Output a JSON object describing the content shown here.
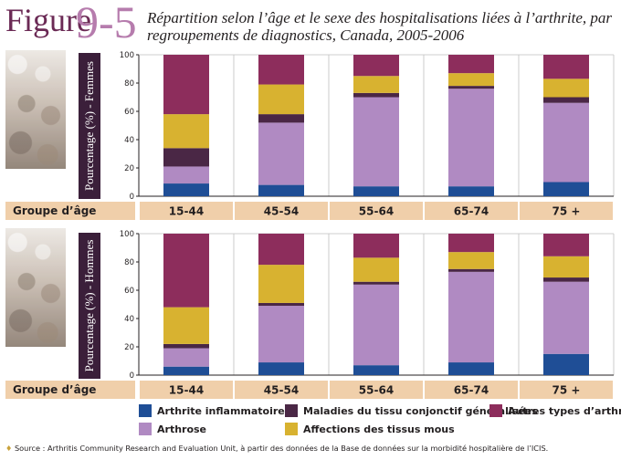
{
  "header": {
    "figure_word": "Figure",
    "figure_number": "9-5",
    "title": "Répartition selon l’âge et le sexe des hospitalisations liées à l’arthrite, par regroupements de diagnostics, Canada, 2005-2006"
  },
  "colors": {
    "arthrite_inflammatoire": "#1f4e96",
    "arthrose": "#b08ac2",
    "maladies_tissu_conjonctif": "#4a2745",
    "affections_tissus_mous": "#d8b230",
    "autres_types": "#8d2d5c",
    "age_bar": "#f0cfaa",
    "ylabel_box": "#3b1f3a"
  },
  "groupe_label": "Groupe d’âge",
  "legend": [
    {
      "key": "arthrite_inflammatoire",
      "label": "Arthrite inflammatoire"
    },
    {
      "key": "maladies_tissu_conjonctif",
      "label": "Maladies du tissu conjonctif généralisées"
    },
    {
      "key": "autres_types",
      "label": "Autres types d’arthrite"
    },
    {
      "key": "arthrose",
      "label": "Arthrose"
    },
    {
      "key": "affections_tissus_mous",
      "label": "Affections des tissus mous"
    }
  ],
  "source": "Source : Arthritis Community Research and Evaluation Unit, à partir des données de la Base de données sur la morbidité hospitalière de l’ICIS.",
  "chart_data": [
    {
      "type": "bar",
      "stacked": true,
      "ylabel": "Pourcentage (%) - Femmes",
      "ylim": [
        0,
        100
      ],
      "yticks": [
        0,
        20,
        40,
        60,
        80,
        100
      ],
      "categories": [
        "15-44",
        "45-54",
        "55-64",
        "65-74",
        "75 +"
      ],
      "series": [
        {
          "name": "Arthrite inflammatoire",
          "key": "arthrite_inflammatoire",
          "values": [
            9,
            8,
            7,
            7,
            10
          ]
        },
        {
          "name": "Arthrose",
          "key": "arthrose",
          "values": [
            12,
            44,
            63,
            69,
            56
          ]
        },
        {
          "name": "Maladies du tissu conjonctif généralisées",
          "key": "maladies_tissu_conjonctif",
          "values": [
            13,
            6,
            3,
            2,
            4
          ]
        },
        {
          "name": "Affections des tissus mous",
          "key": "affections_tissus_mous",
          "values": [
            24,
            21,
            12,
            9,
            13
          ]
        },
        {
          "name": "Autres types d’arthrite",
          "key": "autres_types",
          "values": [
            42,
            21,
            15,
            13,
            17
          ]
        }
      ]
    },
    {
      "type": "bar",
      "stacked": true,
      "ylabel": "Pourcentage (%) - Hommes",
      "ylim": [
        0,
        100
      ],
      "yticks": [
        0,
        20,
        40,
        60,
        80,
        100
      ],
      "categories": [
        "15-44",
        "45-54",
        "55-64",
        "65-74",
        "75 +"
      ],
      "series": [
        {
          "name": "Arthrite inflammatoire",
          "key": "arthrite_inflammatoire",
          "values": [
            6,
            9,
            7,
            9,
            15
          ]
        },
        {
          "name": "Arthrose",
          "key": "arthrose",
          "values": [
            13,
            40,
            57,
            64,
            51
          ]
        },
        {
          "name": "Maladies du tissu conjonctif généralisées",
          "key": "maladies_tissu_conjonctif",
          "values": [
            3,
            2,
            2,
            2,
            3
          ]
        },
        {
          "name": "Affections des tissus mous",
          "key": "affections_tissus_mous",
          "values": [
            26,
            27,
            17,
            12,
            15
          ]
        },
        {
          "name": "Autres types d’arthrite",
          "key": "autres_types",
          "values": [
            52,
            22,
            17,
            13,
            16
          ]
        }
      ]
    }
  ]
}
